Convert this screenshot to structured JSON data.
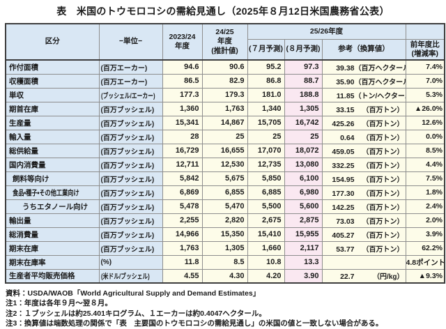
{
  "page": {
    "title": "表　米国のトウモロコシの需給見通し（2025年８月12日米国農務省公表）"
  },
  "table": {
    "headers": {
      "category": "区分",
      "unit": "−単位−",
      "y2324": "2023/24\n年度",
      "y2425": "24/25\n年度\n(推計値)",
      "group2526": "25/26年度",
      "july": "(７月予測)",
      "august": "(８月予測)",
      "reference": "参考（換算値）",
      "yoy": "前年度比\n(増減率)"
    },
    "rows": [
      {
        "label": "作付面積",
        "indent": 0,
        "unit": "(百万エーカー)",
        "y2324": "94.6",
        "y2425": "90.6",
        "jul": "95.2",
        "aug": "97.3",
        "ref_value": "39.38",
        "ref_unit": "（百万ヘクタール）",
        "yoy": "7.4%"
      },
      {
        "label": "収穫面積",
        "indent": 0,
        "unit": "(百万エーカー)",
        "y2324": "86.5",
        "y2425": "82.9",
        "jul": "86.8",
        "aug": "88.7",
        "ref_value": "35.90",
        "ref_unit": "（百万ヘクタール）",
        "yoy": "7.0%"
      },
      {
        "label": "単収",
        "indent": 0,
        "unit": "(ブッシェル/エーカー)",
        "y2324": "177.3",
        "y2425": "179.3",
        "jul": "181.0",
        "aug": "188.8",
        "ref_value": "11.85",
        "ref_unit": "（トン/ヘクタール）",
        "yoy": "5.3%"
      },
      {
        "label": "期首在庫",
        "indent": 0,
        "unit": "(百万ブッシェル)",
        "y2324": "1,360",
        "y2425": "1,763",
        "jul": "1,340",
        "aug": "1,305",
        "ref_value": "33.15",
        "ref_unit": "（百万トン）",
        "yoy": "▲26.0%"
      },
      {
        "label": "生産量",
        "indent": 0,
        "unit": "(百万ブッシェル)",
        "y2324": "15,341",
        "y2425": "14,867",
        "jul": "15,705",
        "aug": "16,742",
        "ref_value": "425.26",
        "ref_unit": "（百万トン）",
        "yoy": "12.6%"
      },
      {
        "label": "輸入量",
        "indent": 0,
        "unit": "(百万ブッシェル)",
        "y2324": "28",
        "y2425": "25",
        "jul": "25",
        "aug": "25",
        "ref_value": "0.64",
        "ref_unit": "（百万トン）",
        "yoy": "0.0%"
      },
      {
        "label": "総供給量",
        "indent": 0,
        "unit": "(百万ブッシェル)",
        "y2324": "16,729",
        "y2425": "16,655",
        "jul": "17,070",
        "aug": "18,072",
        "ref_value": "459.05",
        "ref_unit": "（百万トン）",
        "yoy": "8.5%"
      },
      {
        "label": "国内消費量",
        "indent": 0,
        "unit": "(百万ブッシェル)",
        "y2324": "12,711",
        "y2425": "12,530",
        "jul": "12,735",
        "aug": "13,080",
        "ref_value": "332.25",
        "ref_unit": "（百万トン）",
        "yoy": "4.4%"
      },
      {
        "label": "飼料等向け",
        "indent": 1,
        "unit": "(百万ブッシェル)",
        "y2324": "5,842",
        "y2425": "5,675",
        "jul": "5,850",
        "aug": "6,100",
        "ref_value": "154.95",
        "ref_unit": "（百万トン）",
        "yoy": "7.5%"
      },
      {
        "label": "食品・種子・その他工業向け",
        "indent": 1,
        "unit": "(百万ブッシェル)",
        "y2324": "6,869",
        "y2425": "6,855",
        "jul": "6,885",
        "aug": "6,980",
        "ref_value": "177.30",
        "ref_unit": "（百万トン）",
        "yoy": "1.8%"
      },
      {
        "label": "うちエタノール向け",
        "indent": 2,
        "unit": "(百万ブッシェル)",
        "y2324": "5,478",
        "y2425": "5,470",
        "jul": "5,500",
        "aug": "5,600",
        "ref_value": "142.25",
        "ref_unit": "（百万トン）",
        "yoy": "2.4%"
      },
      {
        "label": "輸出量",
        "indent": 0,
        "unit": "(百万ブッシェル)",
        "y2324": "2,255",
        "y2425": "2,820",
        "jul": "2,675",
        "aug": "2,875",
        "ref_value": "73.03",
        "ref_unit": "（百万トン）",
        "yoy": "2.0%"
      },
      {
        "label": "総消費量",
        "indent": 0,
        "unit": "(百万ブッシェル)",
        "y2324": "14,966",
        "y2425": "15,350",
        "jul": "15,410",
        "aug": "15,955",
        "ref_value": "405.27",
        "ref_unit": "（百万トン）",
        "yoy": "3.9%"
      },
      {
        "label": "期末在庫",
        "indent": 0,
        "unit": "(百万ブッシェル)",
        "y2324": "1,763",
        "y2425": "1,305",
        "jul": "1,660",
        "aug": "2,117",
        "ref_value": "53.77",
        "ref_unit": "（百万トン）",
        "yoy": "62.2%"
      },
      {
        "label": "期末在庫率",
        "indent": 0,
        "unit": "(%)",
        "y2324": "11.8",
        "y2425": "8.5",
        "jul": "10.8",
        "aug": "13.3",
        "ref_value": "",
        "ref_unit": "",
        "yoy": "4.8ポイント"
      },
      {
        "label": "生産者平均販売価格",
        "indent": 0,
        "unit": "(米ドル/ブッシェル)",
        "y2324": "4.55",
        "y2425": "4.30",
        "jul": "4.20",
        "aug": "3.90",
        "ref_value": "22.7",
        "ref_unit": "（円/kg）",
        "yoy": "▲9.3%"
      }
    ]
  },
  "footnotes": [
    "資料：USDA/WAOB「World Agricultural Supply and Demand Estimates」",
    "注1：年度は各年９月～翌８月。",
    "注2：１ブッシェルは約25.401キログラム、１エーカーは約0.4047ヘクタール。",
    "注3：換算値は端数処理の関係で「表　主要国のトウモロコシの需給見通し」の米国の値と一致しない場合がある。"
  ],
  "colors": {
    "header_bg": "#d9e7f4",
    "label_bg": "#d9e7f4",
    "data_bg": "#fdfce9",
    "august_highlight_bg": "#fae8f1"
  }
}
